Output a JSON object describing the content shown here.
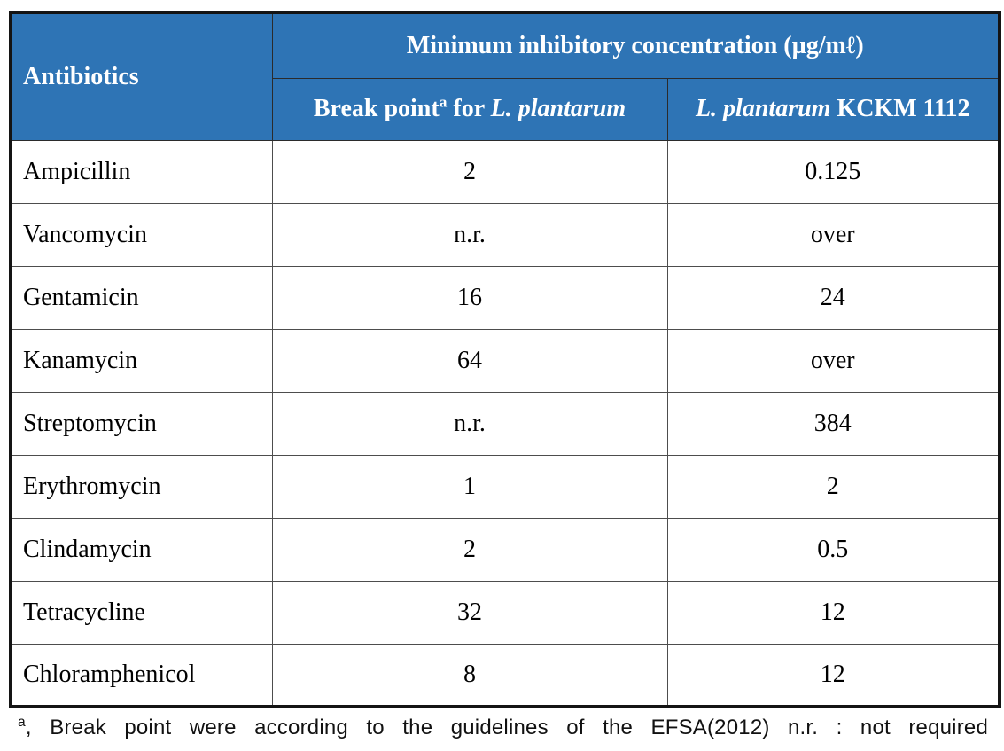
{
  "colors": {
    "header_bg": "#2e74b5",
    "header_text": "#ffffff",
    "outer_border": "#141414",
    "inner_border": "#4d4d4d"
  },
  "table": {
    "antibiotics_header": "Antibiotics",
    "mic_header": "Minimum inhibitory concentration (µg/mℓ)",
    "subheader_left": {
      "text1": "Break point",
      "sup": "a",
      "text2": " for ",
      "species": "L. plantarum"
    },
    "subheader_right": {
      "species": "L. plantarum",
      "text": " KCKM 1112"
    },
    "rows": [
      {
        "antibiotic": "Ampicillin",
        "break_point": "2",
        "kckm_1112": "0.125"
      },
      {
        "antibiotic": "Vancomycin",
        "break_point": "n.r.",
        "kckm_1112": "over"
      },
      {
        "antibiotic": "Gentamicin",
        "break_point": "16",
        "kckm_1112": "24"
      },
      {
        "antibiotic": "Kanamycin",
        "break_point": "64",
        "kckm_1112": "over"
      },
      {
        "antibiotic": "Streptomycin",
        "break_point": "n.r.",
        "kckm_1112": "384"
      },
      {
        "antibiotic": "Erythromycin",
        "break_point": "1",
        "kckm_1112": "2"
      },
      {
        "antibiotic": "Clindamycin",
        "break_point": "2",
        "kckm_1112": "0.5"
      },
      {
        "antibiotic": "Tetracycline",
        "break_point": "32",
        "kckm_1112": "12"
      },
      {
        "antibiotic": "Chloramphenicol",
        "break_point": "8",
        "kckm_1112": "12"
      }
    ],
    "footnote": {
      "sup": "a",
      "text": ", Break point were according to the guidelines of the EFSA(2012) n.r. : not required"
    }
  }
}
